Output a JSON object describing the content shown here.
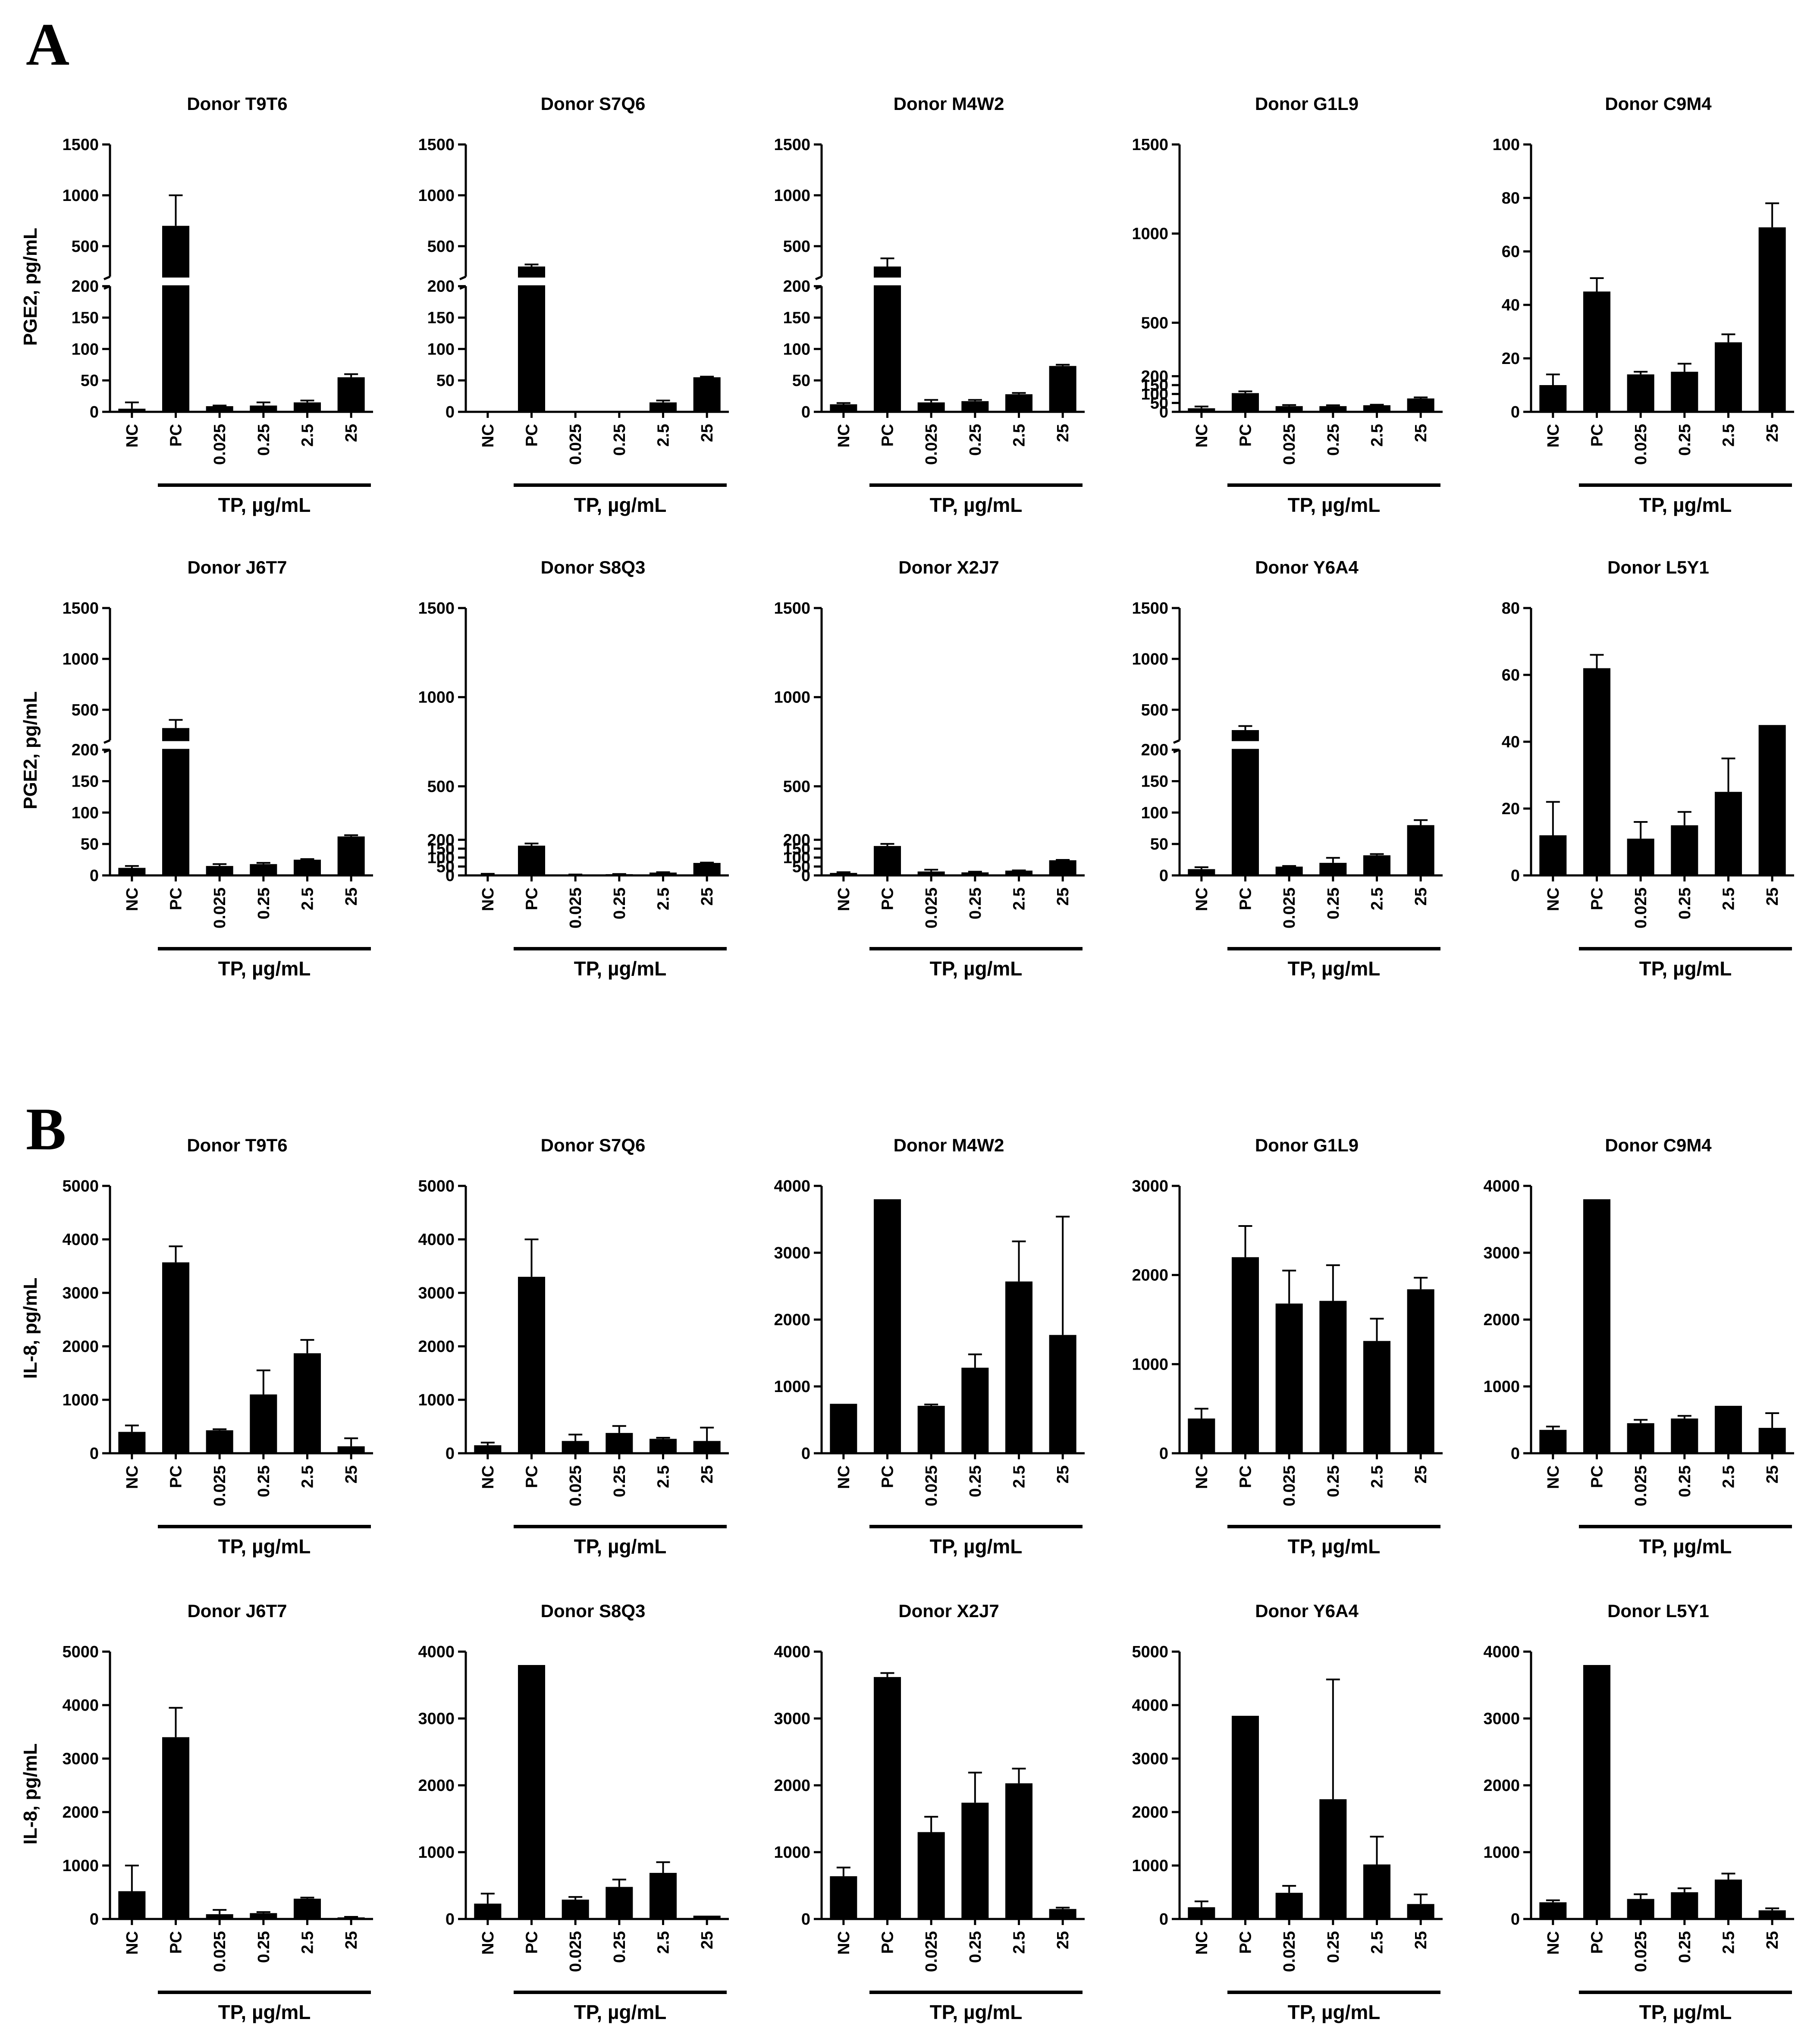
{
  "panels": [
    {
      "letter": "A",
      "ylabel": "PGE2, pg/mL",
      "charts": [
        {
          "type": "bar",
          "title": "Donor T9T6",
          "categories": [
            "NC",
            "PC",
            "0.025",
            "0.25",
            "2.5",
            "25"
          ],
          "xgroup_label": "TP, µg/mL",
          "broken": true,
          "values": [
            5,
            700,
            9,
            10,
            15,
            55
          ],
          "errors": [
            10,
            300,
            1,
            5,
            3,
            5
          ],
          "yticks": [
            0,
            50,
            100,
            150,
            200,
            500,
            1000,
            1500
          ]
        },
        {
          "type": "bar",
          "title": "Donor S7Q6",
          "categories": [
            "NC",
            "PC",
            "0.025",
            "0.25",
            "2.5",
            "25"
          ],
          "xgroup_label": "TP, µg/mL",
          "broken": true,
          "values": [
            0,
            300,
            0,
            0,
            15,
            55
          ],
          "errors": [
            0,
            20,
            0,
            0,
            3,
            1
          ],
          "yticks": [
            0,
            50,
            100,
            150,
            200,
            500,
            1000,
            1500
          ]
        },
        {
          "type": "bar",
          "title": "Donor M4W2",
          "categories": [
            "NC",
            "PC",
            "0.025",
            "0.25",
            "2.5",
            "25"
          ],
          "xgroup_label": "TP, µg/mL",
          "broken": true,
          "values": [
            12,
            300,
            15,
            17,
            28,
            73
          ],
          "errors": [
            2,
            80,
            4,
            2,
            2,
            2
          ],
          "yticks": [
            0,
            50,
            100,
            150,
            200,
            500,
            1000,
            1500
          ]
        },
        {
          "type": "bar",
          "title": "Donor G1L9",
          "categories": [
            "NC",
            "PC",
            "0.025",
            "0.25",
            "2.5",
            "25"
          ],
          "xgroup_label": "TP, µg/mL",
          "broken": false,
          "values": [
            20,
            105,
            32,
            32,
            37,
            75
          ],
          "errors": [
            10,
            10,
            6,
            5,
            3,
            6
          ],
          "yticks": [
            0,
            50,
            100,
            150,
            200,
            500,
            1000,
            1500
          ]
        },
        {
          "type": "bar",
          "title": "Donor C9M4",
          "categories": [
            "NC",
            "PC",
            "0.025",
            "0.25",
            "2.5",
            "25"
          ],
          "xgroup_label": "TP, µg/mL",
          "broken": false,
          "values": [
            10,
            45,
            14,
            15,
            26,
            69
          ],
          "errors": [
            4,
            5,
            1,
            3,
            3,
            9
          ],
          "yticks": [
            0,
            20,
            40,
            60,
            80,
            100
          ],
          "ylim": [
            0,
            100
          ]
        },
        {
          "type": "bar",
          "title": "Donor J6T7",
          "categories": [
            "NC",
            "PC",
            "0.025",
            "0.25",
            "2.5",
            "25"
          ],
          "xgroup_label": "TP, µg/mL",
          "broken": true,
          "values": [
            12,
            320,
            15,
            18,
            25,
            62
          ],
          "errors": [
            3,
            80,
            3,
            2,
            1,
            2
          ],
          "yticks": [
            0,
            50,
            100,
            150,
            200,
            500,
            1000,
            1500
          ]
        },
        {
          "type": "bar",
          "title": "Donor S8Q3",
          "categories": [
            "NC",
            "PC",
            "0.025",
            "0.25",
            "2.5",
            "25"
          ],
          "xgroup_label": "TP, µg/mL",
          "broken": false,
          "values": [
            2,
            167,
            4,
            7,
            16,
            70
          ],
          "errors": [
            7,
            12,
            1,
            1,
            2,
            2
          ],
          "yticks": [
            0,
            50,
            100,
            150,
            200,
            500,
            1000,
            1500
          ]
        },
        {
          "type": "bar",
          "title": "Donor X2J7",
          "categories": [
            "NC",
            "PC",
            "0.025",
            "0.25",
            "2.5",
            "25"
          ],
          "xgroup_label": "TP, µg/mL",
          "broken": false,
          "values": [
            14,
            165,
            22,
            17,
            27,
            85
          ],
          "errors": [
            4,
            12,
            10,
            4,
            1,
            2
          ],
          "yticks": [
            0,
            50,
            100,
            150,
            200,
            500,
            1000,
            1500
          ]
        },
        {
          "type": "bar",
          "title": "Donor Y6A4",
          "categories": [
            "NC",
            "PC",
            "0.025",
            "0.25",
            "2.5",
            "25"
          ],
          "xgroup_label": "TP, µg/mL",
          "broken": true,
          "values": [
            10,
            300,
            14,
            20,
            32,
            80
          ],
          "errors": [
            3,
            40,
            1,
            8,
            2,
            8
          ],
          "yticks": [
            0,
            50,
            100,
            150,
            200,
            500,
            1000,
            1500
          ]
        },
        {
          "type": "bar",
          "title": "Donor L5Y1",
          "categories": [
            "NC",
            "PC",
            "0.025",
            "0.25",
            "2.5",
            "25"
          ],
          "xgroup_label": "TP, µg/mL",
          "broken": false,
          "values": [
            12,
            62,
            11,
            15,
            25,
            45
          ],
          "errors": [
            10,
            4,
            5,
            4,
            10,
            0
          ],
          "yticks": [
            0,
            20,
            40,
            60,
            80
          ],
          "ylim": [
            0,
            80
          ]
        }
      ]
    },
    {
      "letter": "B",
      "ylabel": "IL-8, pg/mL",
      "charts": [
        {
          "type": "bar",
          "title": "Donor T9T6",
          "categories": [
            "NC",
            "PC",
            "0.025",
            "0.25",
            "2.5",
            "25"
          ],
          "xgroup_label": "TP, µg/mL",
          "values": [
            400,
            3570,
            430,
            1100,
            1870,
            130
          ],
          "errors": [
            120,
            300,
            20,
            450,
            250,
            150
          ],
          "yticks": [
            0,
            1000,
            2000,
            3000,
            4000,
            5000
          ],
          "ylim": [
            0,
            5000
          ]
        },
        {
          "type": "bar",
          "title": "Donor S7Q6",
          "categories": [
            "NC",
            "PC",
            "0.025",
            "0.25",
            "2.5",
            "25"
          ],
          "xgroup_label": "TP, µg/mL",
          "values": [
            150,
            3300,
            230,
            380,
            270,
            230
          ],
          "errors": [
            50,
            700,
            120,
            130,
            20,
            250
          ],
          "yticks": [
            0,
            1000,
            2000,
            3000,
            4000,
            5000
          ],
          "ylim": [
            0,
            5000
          ]
        },
        {
          "type": "bar",
          "title": "Donor M4W2",
          "categories": [
            "NC",
            "PC",
            "0.025",
            "0.25",
            "2.5",
            "25"
          ],
          "xgroup_label": "TP, µg/mL",
          "values": [
            740,
            3800,
            710,
            1280,
            2570,
            1770
          ],
          "errors": [
            0,
            0,
            20,
            200,
            600,
            1770
          ],
          "yticks": [
            0,
            1000,
            2000,
            3000,
            4000
          ],
          "ylim": [
            0,
            4000
          ]
        },
        {
          "type": "bar",
          "title": "Donor G1L9",
          "categories": [
            "NC",
            "PC",
            "0.025",
            "0.25",
            "2.5",
            "25"
          ],
          "xgroup_label": "TP, µg/mL",
          "values": [
            390,
            2200,
            1680,
            1710,
            1260,
            1840
          ],
          "errors": [
            110,
            350,
            370,
            400,
            250,
            130
          ],
          "yticks": [
            0,
            1000,
            2000,
            3000
          ],
          "ylim": [
            0,
            3000
          ]
        },
        {
          "type": "bar",
          "title": "Donor C9M4",
          "categories": [
            "NC",
            "PC",
            "0.025",
            "0.25",
            "2.5",
            "25"
          ],
          "xgroup_label": "TP, µg/mL",
          "values": [
            350,
            3800,
            450,
            520,
            710,
            380
          ],
          "errors": [
            50,
            0,
            50,
            40,
            0,
            220
          ],
          "yticks": [
            0,
            1000,
            2000,
            3000,
            4000
          ],
          "ylim": [
            0,
            4000
          ]
        },
        {
          "type": "bar",
          "title": "Donor J6T7",
          "categories": [
            "NC",
            "PC",
            "0.025",
            "0.25",
            "2.5",
            "25"
          ],
          "xgroup_label": "TP, µg/mL",
          "values": [
            520,
            3400,
            90,
            110,
            380,
            30
          ],
          "errors": [
            480,
            550,
            80,
            20,
            20,
            10
          ],
          "yticks": [
            0,
            1000,
            2000,
            3000,
            4000,
            5000
          ],
          "ylim": [
            0,
            5000
          ]
        },
        {
          "type": "bar",
          "title": "Donor S8Q3",
          "categories": [
            "NC",
            "PC",
            "0.025",
            "0.25",
            "2.5",
            "25"
          ],
          "xgroup_label": "TP, µg/mL",
          "values": [
            230,
            3800,
            290,
            480,
            690,
            50
          ],
          "errors": [
            150,
            0,
            40,
            110,
            160,
            0
          ],
          "yticks": [
            0,
            1000,
            2000,
            3000,
            4000
          ],
          "ylim": [
            0,
            4000
          ]
        },
        {
          "type": "bar",
          "title": "Donor X2J7",
          "categories": [
            "NC",
            "PC",
            "0.025",
            "0.25",
            "2.5",
            "25"
          ],
          "xgroup_label": "TP, µg/mL",
          "values": [
            640,
            3620,
            1300,
            1740,
            2030,
            150
          ],
          "errors": [
            130,
            60,
            230,
            450,
            220,
            20
          ],
          "yticks": [
            0,
            1000,
            2000,
            3000,
            4000
          ],
          "ylim": [
            0,
            4000
          ]
        },
        {
          "type": "bar",
          "title": "Donor Y6A4",
          "categories": [
            "NC",
            "PC",
            "0.025",
            "0.25",
            "2.5",
            "25"
          ],
          "xgroup_label": "TP, µg/mL",
          "values": [
            220,
            3800,
            490,
            2240,
            1020,
            280
          ],
          "errors": [
            110,
            0,
            130,
            2240,
            520,
            180
          ],
          "yticks": [
            0,
            1000,
            2000,
            3000,
            4000,
            5000
          ],
          "ylim": [
            0,
            5000
          ]
        },
        {
          "type": "bar",
          "title": "Donor L5Y1",
          "categories": [
            "NC",
            "PC",
            "0.025",
            "0.25",
            "2.5",
            "25"
          ],
          "xgroup_label": "TP, µg/mL",
          "values": [
            250,
            3800,
            300,
            400,
            590,
            130
          ],
          "errors": [
            30,
            0,
            70,
            60,
            90,
            30
          ],
          "yticks": [
            0,
            1000,
            2000,
            3000,
            4000
          ],
          "ylim": [
            0,
            4000
          ]
        }
      ]
    }
  ]
}
